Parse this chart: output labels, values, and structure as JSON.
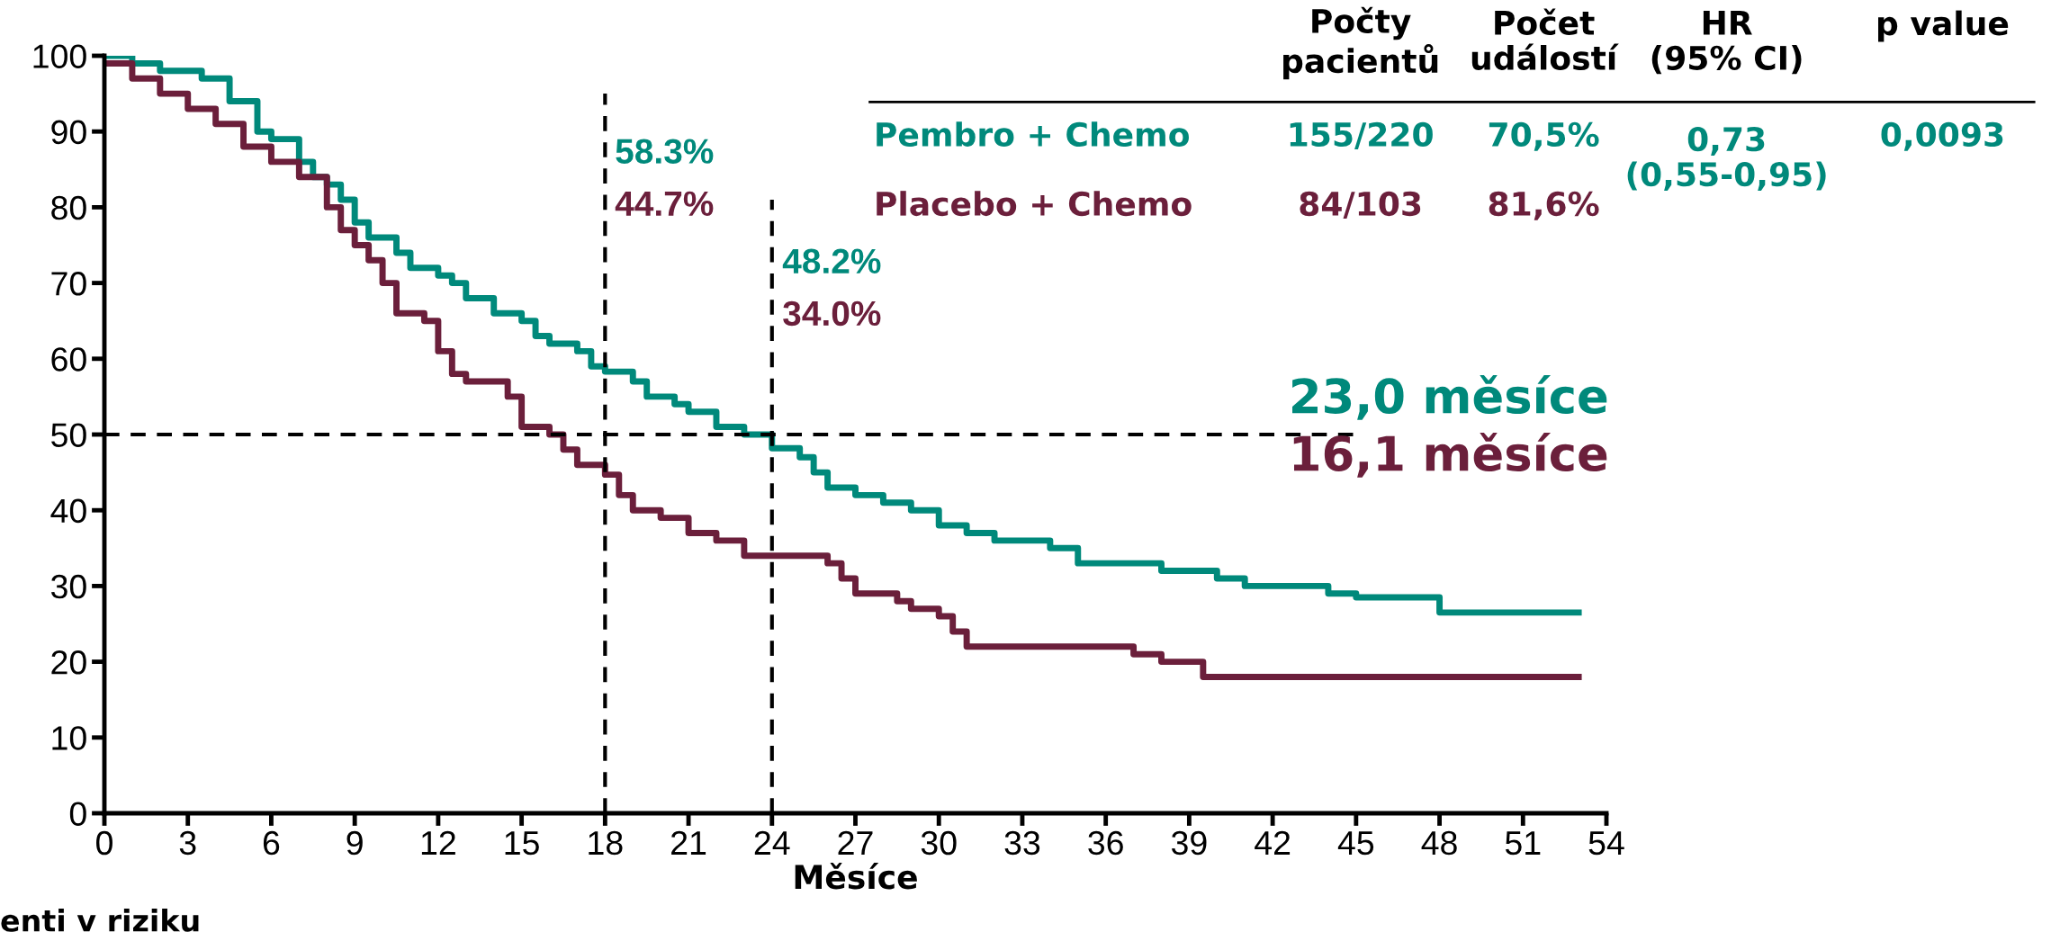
{
  "chart_data": {
    "type": "step",
    "xlabel": "Měsíce",
    "xlim": [
      0,
      54
    ],
    "xticks": [
      0,
      3,
      6,
      9,
      12,
      15,
      18,
      21,
      24,
      27,
      30,
      33,
      36,
      39,
      42,
      45,
      48,
      51,
      54
    ],
    "ylim": [
      0,
      100
    ],
    "yticks": [
      0,
      10,
      20,
      30,
      40,
      50,
      60,
      70,
      80,
      90,
      100
    ],
    "grid": false,
    "series": [
      {
        "name": "Pembro + Chemo",
        "color": "#00897b",
        "x": [
          0,
          1,
          2,
          3.5,
          4.5,
          5.5,
          6,
          7,
          7.5,
          8,
          8.5,
          9,
          9.5,
          10.5,
          11,
          12,
          12.5,
          13,
          14,
          15,
          15.5,
          16,
          17,
          17.5,
          18,
          19,
          19.5,
          20.5,
          21,
          22,
          23,
          24,
          25,
          25.5,
          26,
          27,
          28,
          29,
          30,
          31,
          32,
          34,
          35,
          37,
          38,
          40,
          41,
          44,
          45,
          48,
          53
        ],
        "values": [
          100,
          99,
          98,
          97,
          94,
          90,
          89,
          86,
          84,
          83,
          81,
          78,
          76,
          74,
          72,
          71,
          70,
          68,
          66,
          65,
          63,
          62,
          61,
          59,
          58.3,
          57,
          55,
          54,
          53,
          51,
          50,
          48.2,
          47,
          45,
          43,
          42,
          41,
          40,
          38,
          37,
          36,
          35,
          33,
          33,
          32,
          31,
          30,
          29,
          28.5,
          26.5,
          26.5
        ]
      },
      {
        "name": "Placebo + Chemo",
        "color": "#6b1f3b",
        "x": [
          0,
          1,
          2,
          3,
          4,
          5,
          6,
          7,
          8,
          8.5,
          9,
          9.5,
          10,
          10.5,
          11.5,
          12,
          12.5,
          13,
          14.5,
          15,
          16,
          16.5,
          17,
          18,
          18.5,
          19,
          20,
          21,
          22,
          23,
          26,
          26.5,
          27,
          28.5,
          29,
          30,
          30.5,
          31,
          36,
          37,
          38,
          39.5,
          53
        ],
        "values": [
          99,
          97,
          95,
          93,
          91,
          88,
          86,
          84,
          80,
          77,
          75,
          73,
          70,
          66,
          65,
          61,
          58,
          57,
          55,
          51,
          50,
          48,
          46,
          44.7,
          42,
          40,
          39,
          37,
          36,
          34,
          33,
          31,
          29,
          28,
          27,
          26,
          24,
          22,
          22,
          21,
          20,
          18,
          18
        ]
      }
    ],
    "ref_lines": [
      {
        "axis": "x",
        "value": 18,
        "color": "#000000",
        "line_style": "dashed"
      },
      {
        "axis": "x",
        "value": 24,
        "color": "#000000",
        "line_style": "dashed"
      },
      {
        "axis": "y",
        "value": 50,
        "color": "#000000",
        "line_style": "dashed"
      }
    ],
    "annotations": [
      "Počty\npacientů",
      "Počet\nudálostí",
      "HR\n(95% CI)",
      "p value",
      "155/220",
      "70,5%",
      "0,73\n(0,55-0,95)",
      "0,0093",
      "84/103",
      "81,6%",
      "58.3%",
      "44.7%",
      "48.2%",
      "34.0%",
      "23,0 měsíce",
      "16,1 měsíce",
      "enti v riziku"
    ]
  }
}
